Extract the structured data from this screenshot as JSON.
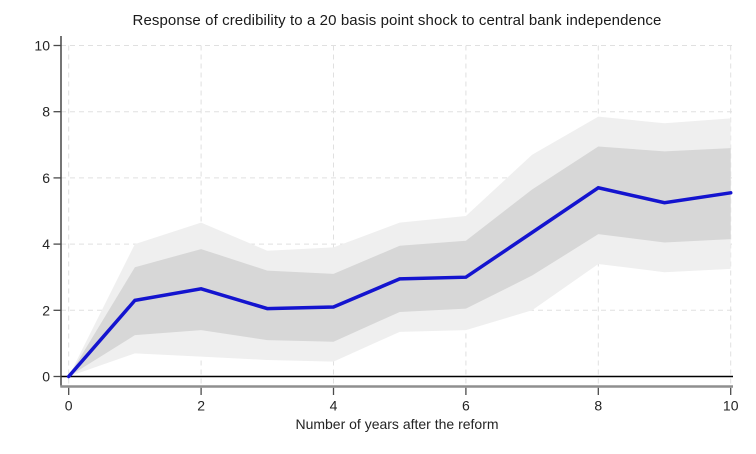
{
  "chart_data": {
    "type": "line",
    "title": "Response of credibility to a 20 basis point shock to central bank independence",
    "xlabel": "Number of years after the reform",
    "ylabel": "",
    "x": [
      0,
      1,
      2,
      3,
      4,
      5,
      6,
      7,
      8,
      9,
      10
    ],
    "series": [
      {
        "name": "response",
        "values": [
          0,
          2.3,
          2.65,
          2.05,
          2.1,
          2.95,
          3.0,
          4.35,
          5.7,
          5.25,
          5.55
        ]
      }
    ],
    "bands": [
      {
        "name": "outer-confidence-band",
        "low": [
          0,
          0.7,
          0.6,
          0.5,
          0.45,
          1.35,
          1.4,
          2.0,
          3.4,
          3.15,
          3.25
        ],
        "high": [
          0,
          4.0,
          4.65,
          3.8,
          3.9,
          4.65,
          4.85,
          6.7,
          7.85,
          7.65,
          7.8
        ]
      },
      {
        "name": "inner-confidence-band",
        "low": [
          0,
          1.25,
          1.4,
          1.1,
          1.05,
          1.95,
          2.05,
          3.05,
          4.3,
          4.05,
          4.15
        ],
        "high": [
          0,
          3.3,
          3.85,
          3.2,
          3.1,
          3.95,
          4.1,
          5.65,
          6.95,
          6.8,
          6.9
        ]
      }
    ],
    "xticks": [
      "0",
      "2",
      "4",
      "6",
      "8",
      "10"
    ],
    "yticks": [
      "0",
      "2",
      "4",
      "6",
      "8",
      "10"
    ],
    "xlim": [
      0,
      10
    ],
    "ylim": [
      0,
      10
    ],
    "grid": "dashed horizontal and vertical gridlines at ticks",
    "zero_line": true,
    "legend": "none",
    "colors": {
      "line": "#1414cf",
      "inner_band": "#d7d7d7",
      "outer_band": "#efefef",
      "grid": "#e0e0e0",
      "x_axis": "#8f8f8f",
      "y_axis": "#3a3a3a",
      "tick": "#4a4a4a",
      "zero_line": "#000000",
      "text": "#242424",
      "background": "#ffffff"
    }
  }
}
